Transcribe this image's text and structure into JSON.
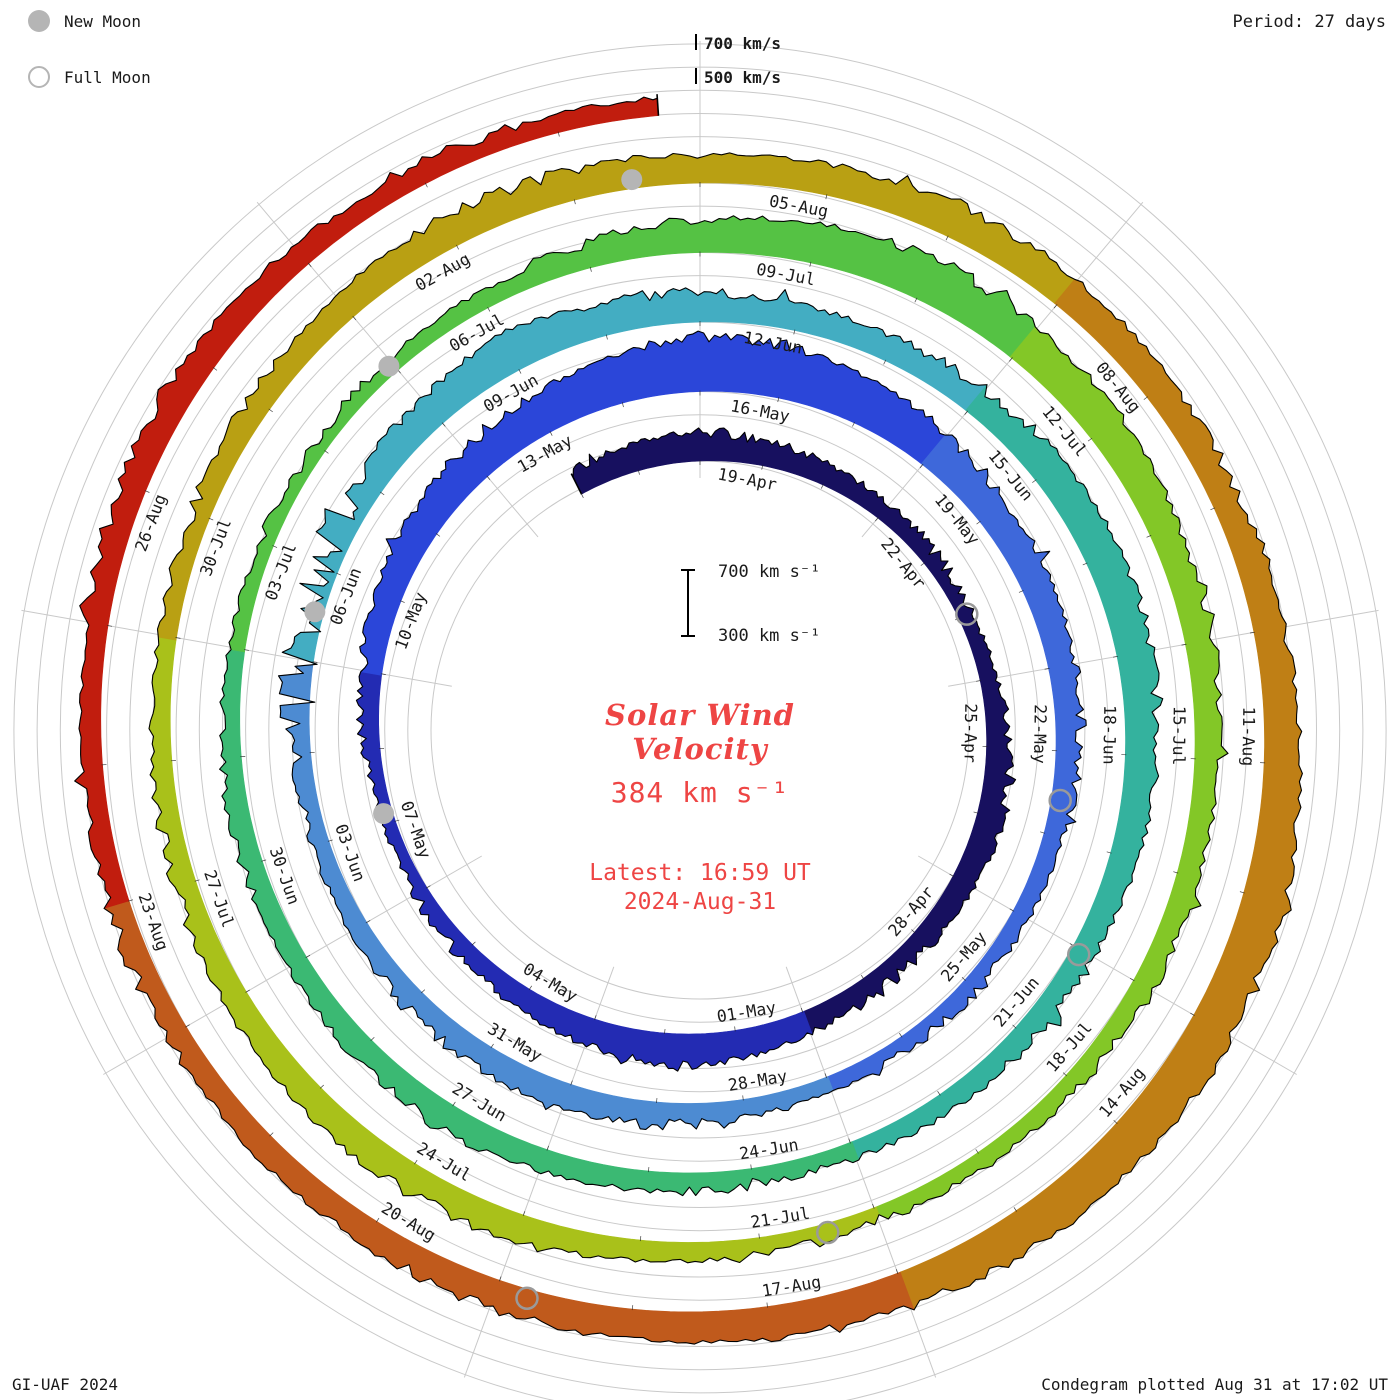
{
  "colors": {
    "accent_red": "#ee4544",
    "grid": "#c9c9c9",
    "text": "#1a1a1a",
    "moon_gray": "#b5b5b5",
    "trace_edge": "#000000"
  },
  "header": {
    "period_label": "Period: 27 days"
  },
  "legend": {
    "new_moon": "New Moon",
    "full_moon": "Full Moon"
  },
  "axis": {
    "outer_label_700": "700 km/s",
    "outer_label_500": "500 km/s",
    "scale_top": "700 km s⁻¹",
    "scale_bottom": "300 km s⁻¹"
  },
  "center": {
    "title_line1": "Solar Wind",
    "title_line2": "Velocity",
    "current_value": "384 km s⁻¹",
    "latest_line1": "Latest: 16:59 UT",
    "latest_line2": "2024-Aug-31"
  },
  "footer": {
    "left": "GI-UAF 2024",
    "right": "Condegram plotted Aug 31 at 17:02 UT"
  },
  "chart_data": {
    "type": "spiral-polar-time-series (condegram)",
    "title": "Solar Wind Velocity",
    "period_days": 27,
    "start_date": "2024-04-17",
    "end_date": "2024-08-31",
    "latest_value_km_s": 384,
    "latest_time": "16:59 UT 2024-Aug-31",
    "radial_scale": {
      "min": 300,
      "max": 700,
      "units": "km/s"
    },
    "date_labels": [
      "19-Apr",
      "22-Apr",
      "25-Apr",
      "28-Apr",
      "01-May",
      "04-May",
      "07-May",
      "10-May",
      "13-May",
      "16-May",
      "19-May",
      "22-May",
      "25-May",
      "28-May",
      "31-May",
      "03-Jun",
      "06-Jun",
      "09-Jun",
      "12-Jun",
      "15-Jun",
      "18-Jun",
      "21-Jun",
      "24-Jun",
      "27-Jun",
      "30-Jun",
      "03-Jul",
      "06-Jul",
      "09-Jul",
      "12-Jul",
      "15-Jul",
      "18-Jul",
      "21-Jul",
      "24-Jul",
      "27-Jul",
      "30-Jul",
      "02-Aug",
      "05-Aug",
      "08-Aug",
      "11-Aug",
      "14-Aug",
      "17-Aug",
      "20-Aug",
      "23-Aug",
      "26-Aug"
    ],
    "daily_velocity": {
      "start": "2024-04-17",
      "values": [
        420,
        440,
        450,
        430,
        400,
        380,
        370,
        360,
        380,
        420,
        440,
        420,
        400,
        390,
        410,
        450,
        470,
        440,
        410,
        380,
        360,
        350,
        370,
        400,
        440,
        470,
        490,
        520,
        560,
        610,
        590,
        550,
        510,
        480,
        460,
        440,
        420,
        400,
        385,
        370,
        360,
        375,
        395,
        415,
        435,
        425,
        405,
        390,
        380,
        370,
        365,
        390,
        430,
        465,
        520,
        470,
        455,
        435,
        425,
        445,
        475,
        495,
        485,
        465,
        445,
        425,
        405,
        392,
        382,
        372,
        392,
        412,
        432,
        422,
        402,
        392,
        382,
        372,
        362,
        352,
        362,
        385,
        425,
        475,
        515,
        535,
        525,
        495,
        465,
        445,
        425,
        405,
        392,
        382,
        372,
        362,
        382,
        402,
        432,
        452,
        442,
        422,
        402,
        392,
        382,
        392,
        412,
        442,
        462,
        452,
        442,
        462,
        482,
        472,
        452,
        442,
        462,
        492,
        522,
        542,
        532,
        512,
        492,
        472,
        452,
        442,
        432,
        422,
        412,
        402,
        392,
        412,
        432,
        442,
        422,
        402,
        384
      ]
    },
    "color_segments": [
      {
        "start": -2,
        "end": 12,
        "color": "#17105f"
      },
      {
        "start": 12,
        "end": 21,
        "color": "#232bb3"
      },
      {
        "start": 21,
        "end": 30,
        "color": "#2b46d9"
      },
      {
        "start": 30,
        "end": 39,
        "color": "#3e68da"
      },
      {
        "start": 39,
        "end": 48,
        "color": "#4d8bd2"
      },
      {
        "start": 48,
        "end": 57,
        "color": "#43adc2"
      },
      {
        "start": 57,
        "end": 66,
        "color": "#34b29e"
      },
      {
        "start": 66,
        "end": 75,
        "color": "#3bb973"
      },
      {
        "start": 75,
        "end": 84,
        "color": "#55c244"
      },
      {
        "start": 84,
        "end": 93,
        "color": "#83c727"
      },
      {
        "start": 93,
        "end": 102,
        "color": "#a9c11a"
      },
      {
        "start": 102,
        "end": 111,
        "color": "#b9a013"
      },
      {
        "start": 111,
        "end": 120,
        "color": "#bf7f15"
      },
      {
        "start": 120,
        "end": 127,
        "color": "#c05a1c"
      },
      {
        "start": 127,
        "end": 134.71,
        "color": "#c11d0e"
      }
    ],
    "new_moons": [
      {
        "date": "2024-05-08",
        "frac": 0.14
      },
      {
        "date": "2024-06-06",
        "frac": 0.53
      },
      {
        "date": "2024-07-05",
        "frac": 0.96
      },
      {
        "date": "2024-08-04",
        "frac": 0.47
      }
    ],
    "full_moons": [
      {
        "date": "2024-04-23",
        "frac": 0.99
      },
      {
        "date": "2024-05-23",
        "frac": 0.58
      },
      {
        "date": "2024-06-21",
        "frac": 0.05
      },
      {
        "date": "2024-07-21",
        "frac": 0.43
      },
      {
        "date": "2024-08-19",
        "frac": 0.77
      }
    ],
    "legend_position": "top-left",
    "grid": true
  }
}
